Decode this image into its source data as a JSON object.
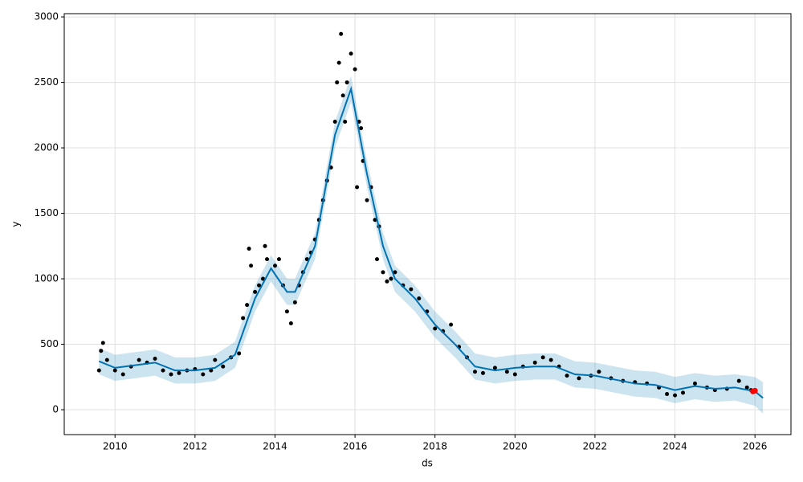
{
  "chart_data": {
    "type": "line",
    "xlabel": "ds",
    "ylabel": "y",
    "xlim": [
      2008.73,
      2026.9
    ],
    "ylim": [
      -190,
      3025
    ],
    "xticks": [
      2010,
      2012,
      2014,
      2016,
      2018,
      2020,
      2022,
      2024,
      2026
    ],
    "yticks": [
      0,
      500,
      1000,
      1500,
      2000,
      2500,
      3000
    ],
    "grid": true,
    "x": [
      2009.6,
      2010.0,
      2010.5,
      2011.0,
      2011.5,
      2012.0,
      2012.5,
      2013.0,
      2013.5,
      2013.9,
      2014.3,
      2014.5,
      2015.0,
      2015.5,
      2015.9,
      2016.3,
      2016.7,
      2017.0,
      2017.5,
      2018.0,
      2018.5,
      2019.0,
      2019.5,
      2020.0,
      2020.5,
      2021.0,
      2021.5,
      2022.0,
      2022.5,
      2023.0,
      2023.5,
      2024.0,
      2024.5,
      2025.0,
      2025.5,
      2026.0,
      2026.2
    ],
    "series": [
      {
        "color": "#0072B2",
        "values": [
          370,
          320,
          340,
          360,
          300,
          300,
          320,
          420,
          850,
          1080,
          900,
          900,
          1250,
          2100,
          2450,
          1800,
          1250,
          1000,
          850,
          650,
          500,
          330,
          300,
          320,
          330,
          330,
          270,
          260,
          230,
          200,
          190,
          150,
          180,
          160,
          170,
          140,
          90
        ]
      }
    ],
    "band": {
      "color": "#0072B2",
      "upper": [
        470,
        420,
        440,
        460,
        400,
        400,
        420,
        520,
        950,
        1180,
        1000,
        1000,
        1350,
        2200,
        2550,
        1900,
        1350,
        1100,
        950,
        750,
        600,
        430,
        400,
        420,
        430,
        430,
        370,
        360,
        330,
        300,
        290,
        250,
        280,
        260,
        270,
        250,
        210
      ],
      "lower": [
        270,
        220,
        240,
        260,
        200,
        200,
        220,
        320,
        750,
        980,
        800,
        800,
        1150,
        2000,
        2350,
        1700,
        1150,
        900,
        750,
        550,
        400,
        230,
        200,
        220,
        230,
        230,
        170,
        160,
        130,
        100,
        90,
        50,
        80,
        60,
        70,
        30,
        -30
      ]
    },
    "points": {
      "color": "#000000",
      "x": [
        2009.6,
        2009.65,
        2009.7,
        2009.8,
        2010.0,
        2010.2,
        2010.4,
        2010.6,
        2010.8,
        2011.0,
        2011.2,
        2011.4,
        2011.6,
        2011.8,
        2012.0,
        2012.2,
        2012.4,
        2012.5,
        2012.7,
        2012.9,
        2013.1,
        2013.2,
        2013.3,
        2013.35,
        2013.4,
        2013.5,
        2013.6,
        2013.7,
        2013.75,
        2013.8,
        2014.0,
        2014.1,
        2014.2,
        2014.3,
        2014.4,
        2014.5,
        2014.6,
        2014.7,
        2014.8,
        2014.9,
        2015.0,
        2015.1,
        2015.2,
        2015.3,
        2015.4,
        2015.5,
        2015.55,
        2015.6,
        2015.65,
        2015.7,
        2015.75,
        2015.8,
        2015.9,
        2016.0,
        2016.05,
        2016.1,
        2016.15,
        2016.2,
        2016.3,
        2016.4,
        2016.5,
        2016.55,
        2016.6,
        2016.7,
        2016.8,
        2016.9,
        2017.0,
        2017.2,
        2017.4,
        2017.6,
        2017.8,
        2018.0,
        2018.2,
        2018.4,
        2018.6,
        2018.8,
        2019.0,
        2019.2,
        2019.5,
        2019.8,
        2020.0,
        2020.2,
        2020.5,
        2020.7,
        2020.9,
        2021.1,
        2021.3,
        2021.6,
        2021.9,
        2022.1,
        2022.4,
        2022.7,
        2023.0,
        2023.3,
        2023.6,
        2023.8,
        2024.0,
        2024.2,
        2024.5,
        2024.8,
        2025.0,
        2025.3,
        2025.6,
        2025.8,
        2025.9
      ],
      "values": [
        300,
        450,
        510,
        380,
        300,
        270,
        330,
        380,
        360,
        390,
        300,
        270,
        280,
        300,
        310,
        270,
        300,
        380,
        330,
        400,
        430,
        700,
        800,
        1230,
        1100,
        900,
        950,
        1000,
        1250,
        1150,
        1100,
        1150,
        950,
        750,
        660,
        820,
        950,
        1050,
        1150,
        1200,
        1300,
        1450,
        1600,
        1750,
        1850,
        2200,
        2500,
        2650,
        2870,
        2400,
        2200,
        2500,
        2720,
        2600,
        1700,
        2200,
        2150,
        1900,
        1600,
        1700,
        1450,
        1150,
        1400,
        1050,
        980,
        1000,
        1050,
        950,
        920,
        850,
        750,
        620,
        600,
        650,
        480,
        400,
        290,
        280,
        320,
        290,
        270,
        330,
        360,
        400,
        380,
        330,
        260,
        240,
        260,
        290,
        240,
        220,
        210,
        200,
        170,
        120,
        110,
        130,
        200,
        170,
        150,
        160,
        220,
        170,
        150
      ]
    },
    "highlight": {
      "color": "#ff0000",
      "x": [
        2025.95,
        2026.0
      ],
      "values": [
        140,
        145
      ]
    }
  }
}
